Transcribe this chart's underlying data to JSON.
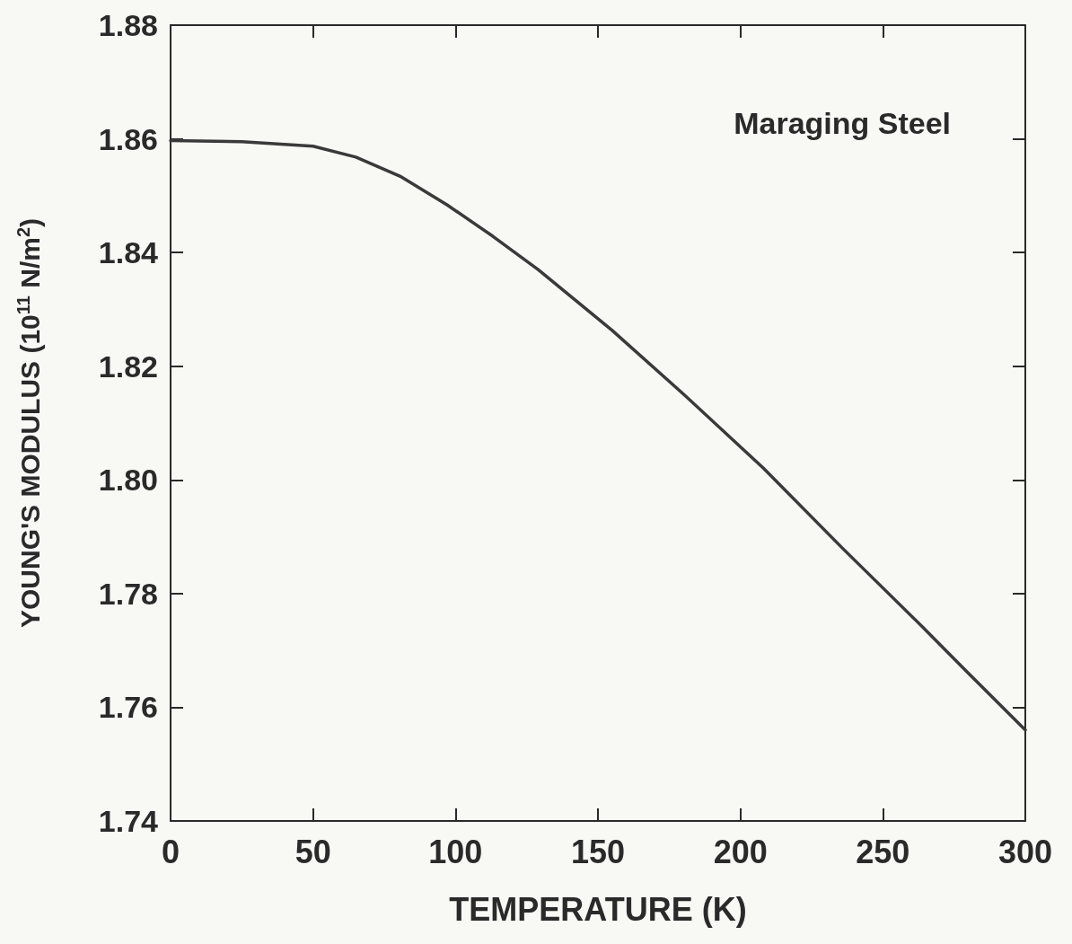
{
  "chart_data": {
    "type": "line",
    "xlabel": "TEMPERATURE (K)",
    "ylabel": "YOUNG'S MODULUS (10$^{11}$ N/m$^{2}$)",
    "annotations": [
      "Maraging Steel"
    ],
    "x": [
      0,
      25,
      50,
      65,
      81,
      97,
      113,
      129,
      155,
      180,
      208,
      236,
      264,
      280,
      300
    ],
    "series": [
      {
        "color": "#3a3a3a",
        "values": [
          1.8597,
          1.8595,
          1.8587,
          1.8568,
          1.8533,
          1.8484,
          1.8429,
          1.837,
          1.8263,
          1.8151,
          1.8021,
          1.7879,
          1.7741,
          1.766,
          1.756
        ]
      }
    ],
    "xlim": [
      0,
      300
    ],
    "xticks": [
      0,
      50,
      100,
      150,
      200,
      250,
      300
    ],
    "ylim": [
      1.74,
      1.88
    ],
    "yticks": [
      1.74,
      1.76,
      1.78,
      {
        "value": 1.8,
        "label": "1.80"
      },
      1.82,
      1.84,
      1.86,
      1.88
    ],
    "grid": false,
    "marker": "none",
    "line_style": "solid"
  }
}
